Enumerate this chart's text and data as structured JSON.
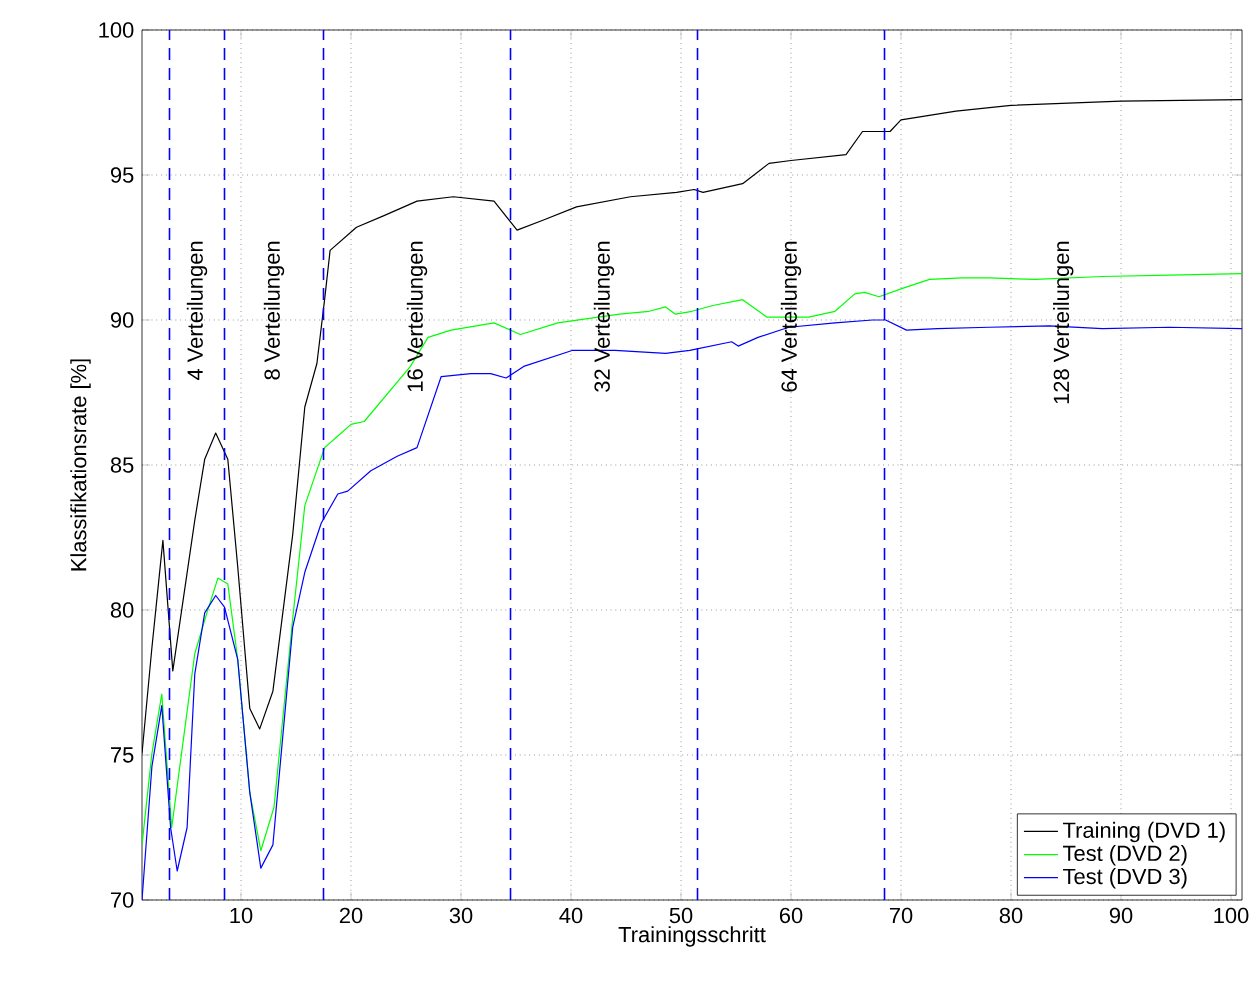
{
  "chart_data": {
    "type": "line",
    "xlabel": "Trainingsschritt",
    "ylabel": "Klassifikationsrate [%]",
    "xlim": [
      1,
      101
    ],
    "ylim": [
      70,
      100
    ],
    "xticks": [
      10,
      20,
      30,
      40,
      50,
      60,
      70,
      80,
      90,
      100
    ],
    "yticks": [
      70,
      75,
      80,
      85,
      90,
      95,
      100
    ],
    "grid": true,
    "legend": "bottom right",
    "series": [
      {
        "name": "Training (DVD 1)",
        "color": "#000000",
        "x": [
          1,
          1.9,
          2.9,
          3.8,
          5.8,
          6.7,
          7.7,
          8.8,
          9.7,
          10.8,
          11.7,
          12.9,
          14.7,
          15.8,
          16.9,
          17.6,
          18.1,
          20.5,
          23,
          26,
          29.3,
          33,
          35.1,
          37.5,
          40.5,
          45.4,
          49.6,
          51.2,
          52,
          55.6,
          58,
          60,
          65,
          66.5,
          69,
          70,
          75,
          80,
          90,
          101
        ],
        "values": [
          75.05,
          78.7,
          82.4,
          77.9,
          83.1,
          85.2,
          86.1,
          85.2,
          81.5,
          76.6,
          75.9,
          77.2,
          82.6,
          87,
          88.5,
          90.7,
          92.4,
          93.2,
          93.6,
          94.1,
          94.25,
          94.1,
          93.1,
          93.45,
          93.9,
          94.25,
          94.4,
          94.5,
          94.4,
          94.7,
          95.4,
          95.5,
          95.7,
          96.5,
          96.5,
          96.9,
          97.2,
          97.4,
          97.55,
          97.6
        ]
      },
      {
        "name": "Test (DVD 2)",
        "color": "#00ff00",
        "x": [
          1,
          1.9,
          2.8,
          3.7,
          5.8,
          6.9,
          7.9,
          8.8,
          9.7,
          10.8,
          11.8,
          13,
          14.7,
          15.8,
          17.6,
          18.8,
          20,
          21.2,
          25.4,
          27,
          29.1,
          33,
          35.4,
          38.8,
          44.4,
          47.1,
          48.6,
          49.5,
          51,
          52.9,
          55.6,
          57.8,
          61.6,
          64,
          65.8,
          66.7,
          68,
          70.2,
          72.6,
          75.6,
          78,
          82.2,
          88.3,
          94.4,
          101
        ],
        "values": [
          71.9,
          75.05,
          77.1,
          72.5,
          78.5,
          79.9,
          81.1,
          80.9,
          78.3,
          73.7,
          71.7,
          73.2,
          79.7,
          83.6,
          85.6,
          86,
          86.4,
          86.5,
          88.4,
          89.4,
          89.65,
          89.9,
          89.5,
          89.9,
          90.2,
          90.3,
          90.45,
          90.2,
          90.3,
          90.5,
          90.7,
          90.1,
          90.1,
          90.3,
          90.9,
          90.95,
          90.8,
          91.1,
          91.4,
          91.45,
          91.45,
          91.4,
          91.5,
          91.55,
          91.6
        ]
      },
      {
        "name": "Test (DVD 3)",
        "color": "#0000ff",
        "x": [
          1,
          1.9,
          2.8,
          3.6,
          4.2,
          5.1,
          5.8,
          6.7,
          7.7,
          8.5,
          9.7,
          10.8,
          11.8,
          12.9,
          14.7,
          15.8,
          17.3,
          18.8,
          19.7,
          21.8,
          24.2,
          26,
          28.2,
          30.9,
          32.7,
          34.1,
          35.7,
          40.1,
          44,
          48.6,
          50.8,
          54.6,
          55.2,
          57,
          59.8,
          64,
          67.4,
          68.6,
          70.5,
          73.3,
          78,
          83.5,
          88.3,
          94.4,
          101
        ],
        "values": [
          70,
          74.6,
          76.7,
          72.5,
          71,
          72.5,
          77.8,
          79.9,
          80.5,
          80.1,
          78.3,
          73.7,
          71.1,
          71.9,
          79.4,
          81.3,
          83,
          84,
          84.1,
          84.8,
          85.3,
          85.6,
          88.05,
          88.15,
          88.15,
          88,
          88.4,
          88.95,
          88.95,
          88.85,
          88.95,
          89.25,
          89.1,
          89.4,
          89.75,
          89.9,
          90,
          90,
          89.65,
          89.7,
          89.75,
          89.8,
          89.7,
          89.75,
          89.7
        ]
      }
    ],
    "ref_lines": [
      {
        "axis": "x",
        "value": 3.5,
        "color": "#0000ff",
        "line_style": "dashed"
      },
      {
        "axis": "x",
        "value": 8.5,
        "color": "#0000ff",
        "line_style": "dashed"
      },
      {
        "axis": "x",
        "value": 17.5,
        "color": "#0000ff",
        "line_style": "dashed"
      },
      {
        "axis": "x",
        "value": 34.5,
        "color": "#0000ff",
        "line_style": "dashed"
      },
      {
        "axis": "x",
        "value": 51.5,
        "color": "#0000ff",
        "line_style": "dashed"
      },
      {
        "axis": "x",
        "value": 68.5,
        "color": "#0000ff",
        "line_style": "dashed"
      }
    ],
    "annotations": [
      "4 Verteilungen",
      "8 Verteilungen",
      "16 Verteilungen",
      "32 Verteilungen",
      "64 Verteilungen",
      "128 Verteilungen"
    ]
  }
}
